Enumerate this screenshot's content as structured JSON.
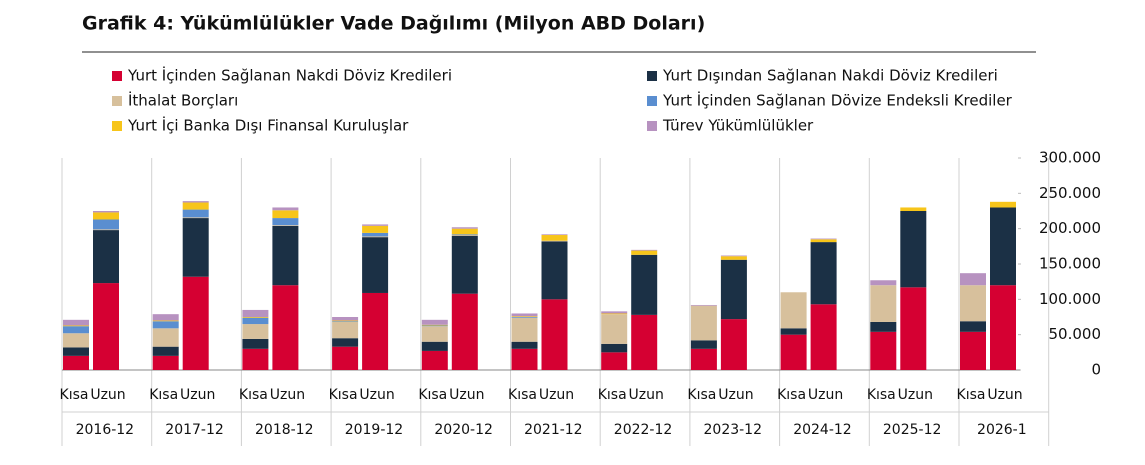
{
  "chart_data": {
    "type": "stacked-bar",
    "title": "Grafik 4: Yükümlülükler Vade Dağılımı (Milyon ABD Doları)",
    "groups": [
      "2016-12",
      "2017-12",
      "2018-12",
      "2019-12",
      "2020-12",
      "2021-12",
      "2022-12",
      "2023-12",
      "2024-12",
      "2025-12",
      "2026-1"
    ],
    "categories": [
      "Kısa",
      "Uzun",
      "Kısa",
      "Uzun",
      "Kısa",
      "Uzun",
      "Kısa",
      "Uzun",
      "Kısa",
      "Uzun",
      "Kısa",
      "Uzun",
      "Kısa",
      "Uzun",
      "Kısa",
      "Uzun",
      "Kısa",
      "Uzun",
      "Kısa",
      "Uzun",
      "Kısa",
      "Uzun"
    ],
    "series": [
      {
        "name": "Yurt İçinden Sağlanan Nakdi Döviz Kredileri",
        "color": "#d50032",
        "values": [
          20000,
          123000,
          20000,
          132000,
          30000,
          120000,
          33000,
          109000,
          27000,
          108000,
          30000,
          100000,
          25000,
          78000,
          30000,
          72000,
          50000,
          93000,
          54000,
          117000,
          54000,
          120000
        ]
      },
      {
        "name": "Yurt Dışından Sağlanan Nakdi Döviz Kredileri",
        "color": "#1b3045",
        "values": [
          12000,
          75000,
          13000,
          83000,
          14000,
          84000,
          12000,
          79000,
          13000,
          82000,
          10000,
          82000,
          12000,
          85000,
          12000,
          84000,
          9000,
          88000,
          14000,
          108000,
          15000,
          110000
        ]
      },
      {
        "name": "İthalat Borçları",
        "color": "#d7c09c",
        "values": [
          20000,
          1000,
          26000,
          1000,
          21000,
          1000,
          23000,
          1000,
          22000,
          1000,
          34000,
          1000,
          42000,
          0,
          49000,
          0,
          51000,
          0,
          52000,
          0,
          51000,
          0
        ]
      },
      {
        "name": "Yurt İçinden Sağlanan Dövize Endeksli Krediler",
        "color": "#5a8ed0",
        "values": [
          10000,
          14000,
          10000,
          11000,
          9000,
          10000,
          1000,
          5000,
          1000,
          1000,
          1000,
          0,
          0,
          0,
          0,
          0,
          0,
          0,
          0,
          0,
          0,
          0
        ]
      },
      {
        "name": "Yurt İçi Banka Dışı Finansal Kuruluşlar",
        "color": "#f7c51a",
        "values": [
          1000,
          10000,
          1000,
          10000,
          1000,
          11000,
          1000,
          10000,
          1000,
          8000,
          1000,
          8000,
          1000,
          6000,
          0,
          5000,
          0,
          4000,
          0,
          5000,
          0,
          8000
        ]
      },
      {
        "name": "Türev Yükümlülükler",
        "color": "#b792c0",
        "values": [
          8000,
          2000,
          9000,
          2000,
          10000,
          4000,
          5000,
          2000,
          7000,
          2000,
          4000,
          1000,
          3000,
          1000,
          1000,
          1000,
          0,
          1000,
          7000,
          0,
          17000,
          0
        ]
      }
    ],
    "ylim": [
      0,
      300000
    ],
    "yticks": [
      0,
      {
        "value": 50000,
        "label": "50.000"
      },
      {
        "value": 100000,
        "label": "100.000"
      },
      {
        "value": 150000,
        "label": "150.000"
      },
      {
        "value": 200000,
        "label": "200.000"
      },
      {
        "value": 250000,
        "label": "250.000"
      },
      {
        "value": 300000,
        "label": "300.000"
      }
    ]
  }
}
